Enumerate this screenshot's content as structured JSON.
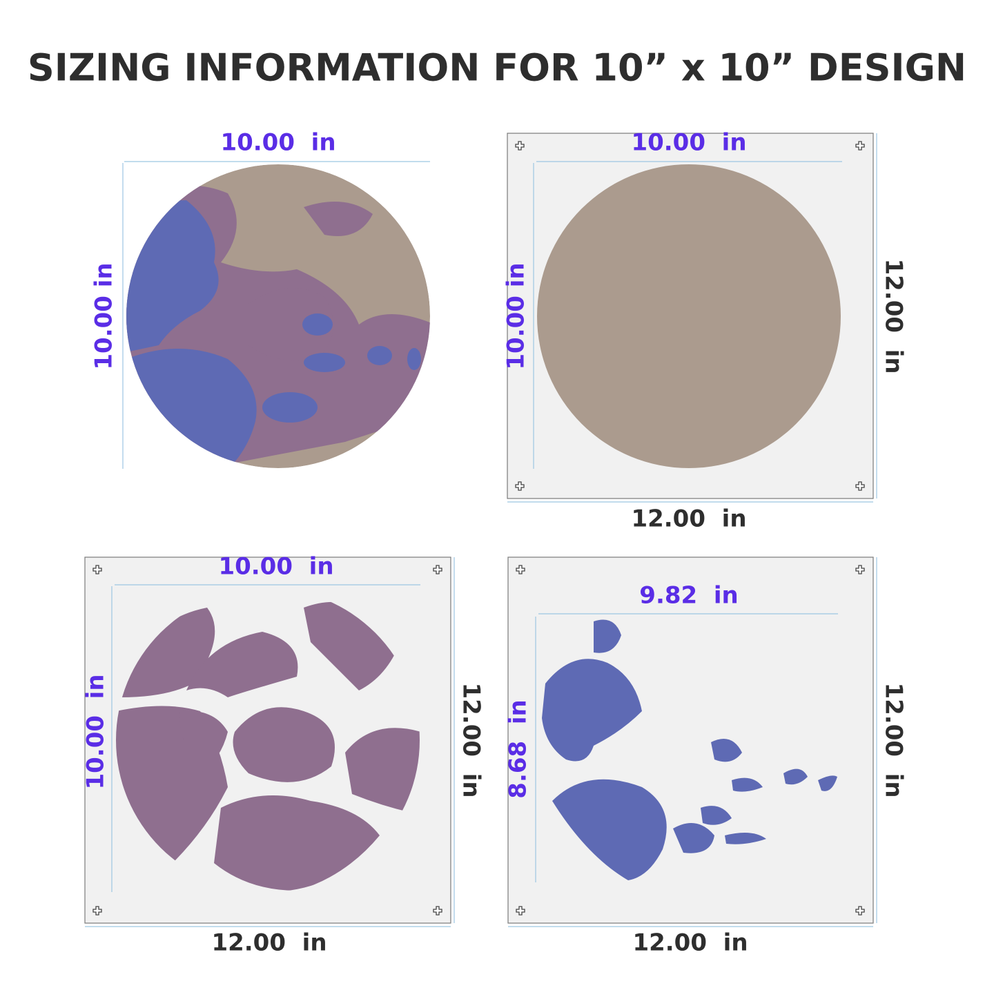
{
  "title": "SIZING INFORMATION FOR 10” x 10” DESIGN",
  "panels": [
    {
      "width": "10.00  in",
      "height": "10.00 in"
    },
    {
      "width": "10.00  in",
      "height": "10.00 in",
      "sheet_width": "12.00  in",
      "sheet_height": "12.00  in"
    },
    {
      "width": "10.00  in",
      "height": "10.00  in",
      "sheet_width": "12.00  in",
      "sheet_height": "12.00  in"
    },
    {
      "width": "9.82  in",
      "height": "8.68  in",
      "sheet_width": "12.00  in",
      "sheet_height": "12.00  in"
    }
  ]
}
